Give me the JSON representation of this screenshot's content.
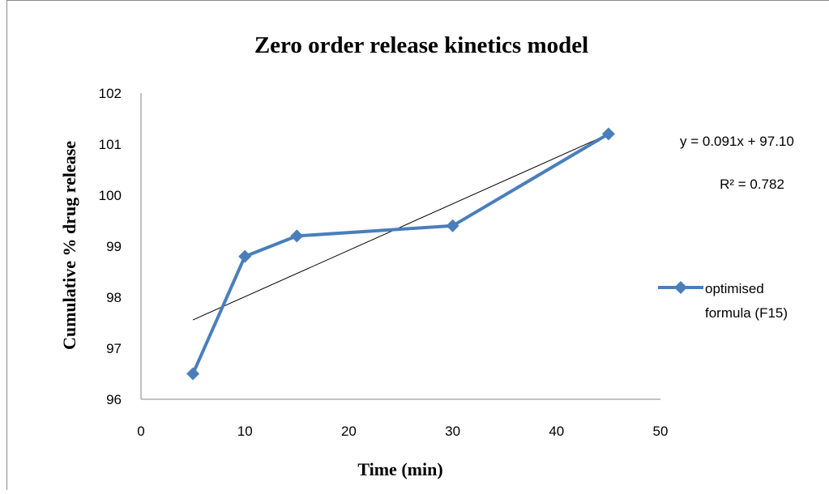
{
  "chart_data": {
    "type": "line",
    "title": "Zero order release kinetics model",
    "xlabel": "Time (min)",
    "ylabel": "Cumulative %  drug release",
    "xlim": [
      0,
      50
    ],
    "ylim": [
      96,
      102
    ],
    "x_ticks": [
      0,
      10,
      20,
      30,
      40,
      50
    ],
    "y_ticks": [
      96,
      97,
      98,
      99,
      100,
      101,
      102
    ],
    "grid": false,
    "legend_position": "right",
    "series": [
      {
        "name": "optimised formula (F15)",
        "legend_lines": [
          "optimised",
          "formula (F15)"
        ],
        "color": "#4a7ebb",
        "marker": "diamond",
        "x": [
          5,
          10,
          15,
          30,
          45
        ],
        "values": [
          96.5,
          98.8,
          99.2,
          99.4,
          101.2
        ]
      }
    ],
    "trendline": {
      "type": "linear",
      "slope": 0.091,
      "intercept": 97.1,
      "x_range": [
        5,
        45
      ],
      "color": "#000000",
      "equation": "y = 0.091x + 97.10",
      "r_squared": "R² = 0.782"
    }
  }
}
